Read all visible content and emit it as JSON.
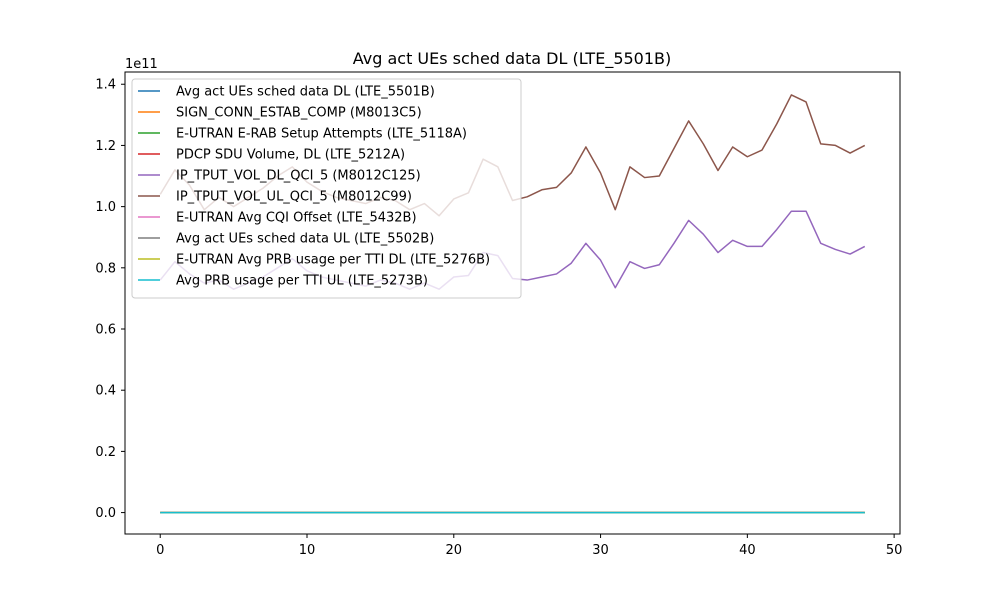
{
  "chart_data": {
    "type": "line",
    "title": "Avg act UEs sched data DL (LTE_5501B)",
    "xlabel": "",
    "ylabel": "",
    "y_scale_label": "1e11",
    "xlim": [
      -2.4,
      50.4
    ],
    "ylim": [
      -7000000000.0,
      144000000000.0
    ],
    "x_ticks": [
      0,
      10,
      20,
      30,
      40,
      50
    ],
    "y_ticks": [
      0.0,
      20000000000.0,
      40000000000.0,
      60000000000.0,
      80000000000.0,
      100000000000.0,
      120000000000.0,
      140000000000.0
    ],
    "y_tick_labels": [
      "0.0",
      "0.2",
      "0.4",
      "0.6",
      "0.8",
      "1.0",
      "1.2",
      "1.4"
    ],
    "grid": false,
    "legend_position": "upper-left",
    "x": [
      0,
      1,
      2,
      3,
      4,
      5,
      6,
      7,
      8,
      9,
      10,
      11,
      12,
      13,
      14,
      15,
      16,
      17,
      18,
      19,
      20,
      21,
      22,
      23,
      24,
      25,
      26,
      27,
      28,
      29,
      30,
      31,
      32,
      33,
      34,
      35,
      36,
      37,
      38,
      39,
      40,
      41,
      42,
      43,
      44,
      45,
      46,
      47,
      48
    ],
    "series": [
      {
        "name": "Avg act UEs sched data DL (LTE_5501B)",
        "color": "#1f77b4",
        "values": [
          0,
          0,
          0,
          0,
          0,
          0,
          0,
          0,
          0,
          0,
          0,
          0,
          0,
          0,
          0,
          0,
          0,
          0,
          0,
          0,
          0,
          0,
          0,
          0,
          0,
          0,
          0,
          0,
          0,
          0,
          0,
          0,
          0,
          0,
          0,
          0,
          0,
          0,
          0,
          0,
          0,
          0,
          0,
          0,
          0,
          0,
          0,
          0,
          0
        ]
      },
      {
        "name": "SIGN_CONN_ESTAB_COMP (M8013C5)",
        "color": "#ff7f0e",
        "values": [
          0,
          0,
          0,
          0,
          0,
          0,
          0,
          0,
          0,
          0,
          0,
          0,
          0,
          0,
          0,
          0,
          0,
          0,
          0,
          0,
          0,
          0,
          0,
          0,
          0,
          0,
          0,
          0,
          0,
          0,
          0,
          0,
          0,
          0,
          0,
          0,
          0,
          0,
          0,
          0,
          0,
          0,
          0,
          0,
          0,
          0,
          0,
          0,
          0
        ]
      },
      {
        "name": "E-UTRAN E-RAB Setup Attempts (LTE_5118A)",
        "color": "#2ca02c",
        "values": [
          0,
          0,
          0,
          0,
          0,
          0,
          0,
          0,
          0,
          0,
          0,
          0,
          0,
          0,
          0,
          0,
          0,
          0,
          0,
          0,
          0,
          0,
          0,
          0,
          0,
          0,
          0,
          0,
          0,
          0,
          0,
          0,
          0,
          0,
          0,
          0,
          0,
          0,
          0,
          0,
          0,
          0,
          0,
          0,
          0,
          0,
          0,
          0,
          0
        ]
      },
      {
        "name": "PDCP SDU Volume, DL (LTE_5212A)",
        "color": "#d62728",
        "values": [
          0,
          0,
          0,
          0,
          0,
          0,
          0,
          0,
          0,
          0,
          0,
          0,
          0,
          0,
          0,
          0,
          0,
          0,
          0,
          0,
          0,
          0,
          0,
          0,
          0,
          0,
          0,
          0,
          0,
          0,
          0,
          0,
          0,
          0,
          0,
          0,
          0,
          0,
          0,
          0,
          0,
          0,
          0,
          0,
          0,
          0,
          0,
          0,
          0
        ]
      },
      {
        "name": "IP_TPUT_VOL_DL_QCI_5 (M8012C125)",
        "color": "#9467bd",
        "values": [
          76000000000.0,
          82000000000.0,
          78000000000.0,
          75000000000.0,
          76000000000.0,
          73000000000.0,
          75000000000.0,
          77000000000.0,
          80000000000.0,
          83000000000.0,
          79000000000.0,
          77000000000.0,
          76000000000.0,
          75000000000.0,
          74000000000.0,
          76000000000.0,
          75000000000.0,
          73000000000.0,
          75000000000.0,
          73000000000.0,
          77000000000.0,
          77500000000.0,
          85000000000.0,
          84000000000.0,
          76500000000.0,
          76000000000.0,
          77000000000.0,
          78000000000.0,
          81500000000.0,
          88000000000.0,
          82500000000.0,
          73500000000.0,
          82000000000.0,
          79800000000.0,
          81000000000.0,
          88000000000.0,
          95500000000.0,
          91000000000.0,
          85000000000.0,
          89000000000.0,
          87000000000.0,
          87000000000.0,
          92500000000.0,
          98500000000.0,
          98500000000.0,
          88000000000.0,
          86000000000.0,
          84500000000.0,
          87000000000.0
        ]
      },
      {
        "name": "IP_TPUT_VOL_UL_QCI_5 (M8012C99)",
        "color": "#8c564b",
        "values": [
          104000000000.0,
          112000000000.0,
          107000000000.0,
          99000000000.0,
          103000000000.0,
          100000000000.0,
          103000000000.0,
          106000000000.0,
          110000000000.0,
          113000000000.0,
          108000000000.0,
          105000000000.0,
          103000000000.0,
          102000000000.0,
          101000000000.0,
          103000000000.0,
          102000000000.0,
          99000000000.0,
          101000000000.0,
          97000000000.0,
          102500000000.0,
          104500000000.0,
          115500000000.0,
          113000000000.0,
          102000000000.0,
          103200000000.0,
          105500000000.0,
          106300000000.0,
          111000000000.0,
          119500000000.0,
          111000000000.0,
          99000000000.0,
          113000000000.0,
          109500000000.0,
          110000000000.0,
          119000000000.0,
          128000000000.0,
          120500000000.0,
          111800000000.0,
          119500000000.0,
          116300000000.0,
          118500000000.0,
          127000000000.0,
          136500000000.0,
          134200000000.0,
          120500000000.0,
          120000000000.0,
          117500000000.0,
          120000000000.0
        ]
      },
      {
        "name": "E-UTRAN Avg CQI Offset (LTE_5432B)",
        "color": "#e377c2",
        "values": [
          0,
          0,
          0,
          0,
          0,
          0,
          0,
          0,
          0,
          0,
          0,
          0,
          0,
          0,
          0,
          0,
          0,
          0,
          0,
          0,
          0,
          0,
          0,
          0,
          0,
          0,
          0,
          0,
          0,
          0,
          0,
          0,
          0,
          0,
          0,
          0,
          0,
          0,
          0,
          0,
          0,
          0,
          0,
          0,
          0,
          0,
          0,
          0,
          0
        ]
      },
      {
        "name": "Avg act UEs sched data UL (LTE_5502B)",
        "color": "#7f7f7f",
        "values": [
          0,
          0,
          0,
          0,
          0,
          0,
          0,
          0,
          0,
          0,
          0,
          0,
          0,
          0,
          0,
          0,
          0,
          0,
          0,
          0,
          0,
          0,
          0,
          0,
          0,
          0,
          0,
          0,
          0,
          0,
          0,
          0,
          0,
          0,
          0,
          0,
          0,
          0,
          0,
          0,
          0,
          0,
          0,
          0,
          0,
          0,
          0,
          0,
          0
        ]
      },
      {
        "name": "E-UTRAN Avg PRB usage per TTI DL (LTE_5276B)",
        "color": "#bcbd22",
        "values": [
          0,
          0,
          0,
          0,
          0,
          0,
          0,
          0,
          0,
          0,
          0,
          0,
          0,
          0,
          0,
          0,
          0,
          0,
          0,
          0,
          0,
          0,
          0,
          0,
          0,
          0,
          0,
          0,
          0,
          0,
          0,
          0,
          0,
          0,
          0,
          0,
          0,
          0,
          0,
          0,
          0,
          0,
          0,
          0,
          0,
          0,
          0,
          0,
          0
        ]
      },
      {
        "name": "Avg PRB usage per TTI UL (LTE_5273B)",
        "color": "#17becf",
        "values": [
          0,
          0,
          0,
          0,
          0,
          0,
          0,
          0,
          0,
          0,
          0,
          0,
          0,
          0,
          0,
          0,
          0,
          0,
          0,
          0,
          0,
          0,
          0,
          0,
          0,
          0,
          0,
          0,
          0,
          0,
          0,
          0,
          0,
          0,
          0,
          0,
          0,
          0,
          0,
          0,
          0,
          0,
          0,
          0,
          0,
          0,
          0,
          0,
          0
        ]
      }
    ]
  }
}
